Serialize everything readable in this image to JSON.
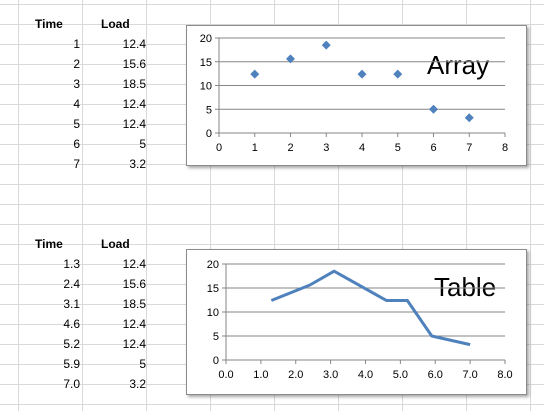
{
  "sheet": {
    "table1": {
      "headers": [
        "Time",
        "Load"
      ],
      "rows": [
        [
          "1",
          "12.4"
        ],
        [
          "2",
          "15.6"
        ],
        [
          "3",
          "18.5"
        ],
        [
          "4",
          "12.4"
        ],
        [
          "5",
          "12.4"
        ],
        [
          "6",
          "5"
        ],
        [
          "7",
          "3.2"
        ]
      ]
    },
    "table2": {
      "headers": [
        "Time",
        "Load"
      ],
      "rows": [
        [
          "1.3",
          "12.4"
        ],
        [
          "2.4",
          "15.6"
        ],
        [
          "3.1",
          "18.5"
        ],
        [
          "4.6",
          "12.4"
        ],
        [
          "5.2",
          "12.4"
        ],
        [
          "5.9",
          "5"
        ],
        [
          "7.0",
          "3.2"
        ]
      ]
    }
  },
  "chart_data": [
    {
      "type": "scatter",
      "title": "",
      "annotation": "Array",
      "x": [
        1,
        2,
        3,
        4,
        5,
        6,
        7
      ],
      "y": [
        12.4,
        15.6,
        18.5,
        12.4,
        12.4,
        5,
        3.2
      ],
      "xlim": [
        0,
        8
      ],
      "ylim": [
        0,
        20
      ],
      "xticks": [
        "0",
        "1",
        "2",
        "3",
        "4",
        "5",
        "6",
        "7",
        "8"
      ],
      "yticks": [
        "0",
        "5",
        "10",
        "15",
        "20"
      ],
      "grid": "horizontal",
      "color": "#4f81bd"
    },
    {
      "type": "line",
      "title": "",
      "annotation": "Table",
      "x": [
        1.3,
        2.4,
        3.1,
        4.6,
        5.2,
        5.9,
        7.0
      ],
      "y": [
        12.4,
        15.6,
        18.5,
        12.4,
        12.4,
        5,
        3.2
      ],
      "xlim": [
        0,
        8
      ],
      "ylim": [
        0,
        20
      ],
      "xticks": [
        "0.0",
        "1.0",
        "2.0",
        "3.0",
        "4.0",
        "5.0",
        "6.0",
        "7.0",
        "8.0"
      ],
      "yticks": [
        "0",
        "5",
        "10",
        "15",
        "20"
      ],
      "grid": "horizontal",
      "color": "#4f81bd"
    }
  ]
}
